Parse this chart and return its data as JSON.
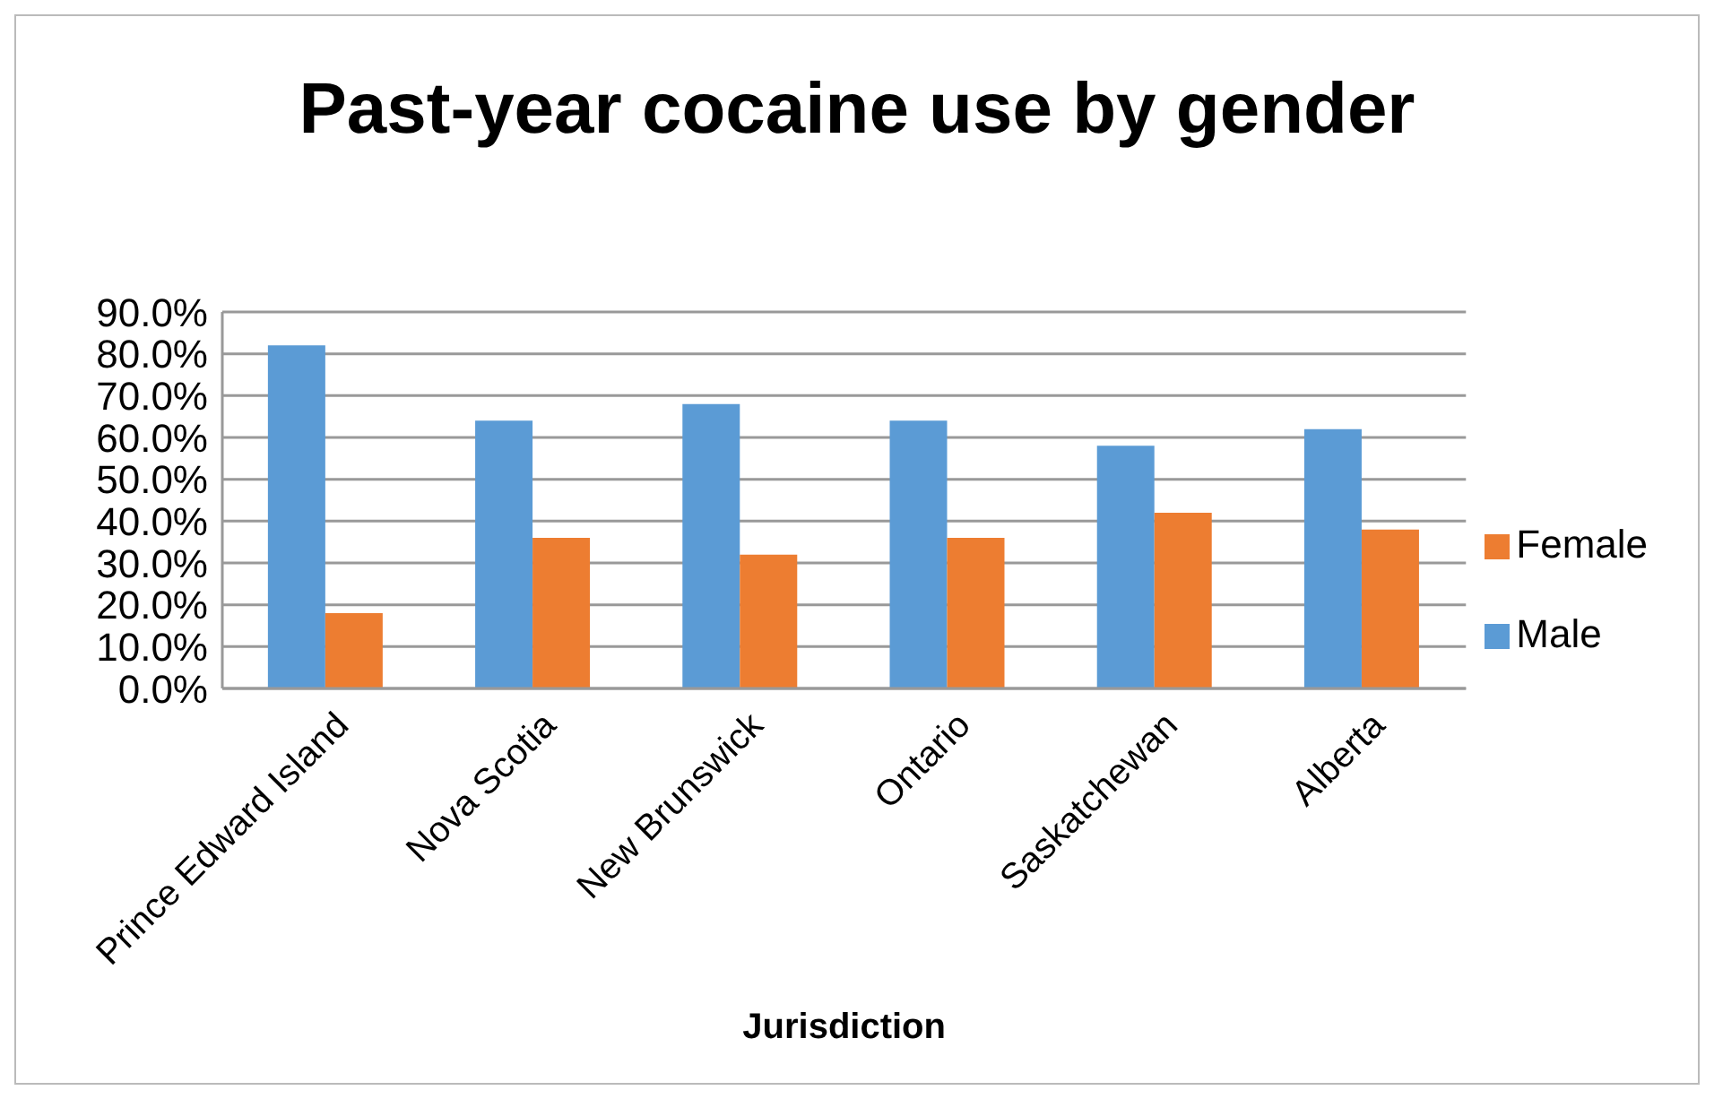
{
  "chart_data": {
    "type": "bar",
    "title": "Past-year cocaine use by gender",
    "xlabel": "Jurisdiction",
    "categories": [
      "Prince Edward Island",
      "Nova Scotia",
      "New Brunswick",
      "Ontario",
      "Saskatchewan",
      "Alberta"
    ],
    "series": [
      {
        "name": "Male",
        "color": "#5b9bd5",
        "values": [
          82,
          64,
          68,
          64,
          58,
          62
        ]
      },
      {
        "name": "Female",
        "color": "#ed7d31",
        "values": [
          18,
          36,
          32,
          36,
          42,
          38
        ]
      }
    ],
    "ylim": [
      0,
      90
    ],
    "yticks": [
      {
        "value": 0,
        "label": "0.0%"
      },
      {
        "value": 10,
        "label": "10.0%"
      },
      {
        "value": 20,
        "label": "20.0%"
      },
      {
        "value": 30,
        "label": "30.0%"
      },
      {
        "value": 40,
        "label": "40.0%"
      },
      {
        "value": 50,
        "label": "50.0%"
      },
      {
        "value": 60,
        "label": "60.0%"
      },
      {
        "value": 70,
        "label": "70.0%"
      },
      {
        "value": 80,
        "label": "80.0%"
      },
      {
        "value": 90,
        "label": "90.0%"
      }
    ],
    "grid": "y",
    "legend": "right"
  }
}
